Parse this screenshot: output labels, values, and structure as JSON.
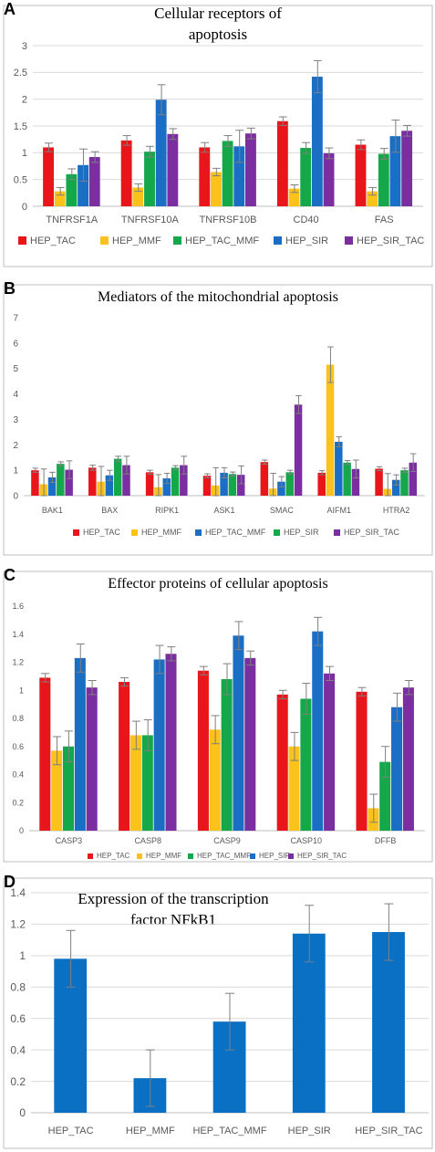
{
  "chart_data": [
    {
      "panel": "A",
      "type": "bar",
      "title_lines": [
        "Cellular  receptors of",
        "apoptosis"
      ],
      "categories": [
        "TNFRSF1A",
        "TNFRSF10A",
        "TNFRSF10B",
        "CD40",
        "FAS"
      ],
      "ylim": [
        0,
        3
      ],
      "yticks": [
        0,
        0.5,
        1,
        1.5,
        2,
        2.5,
        3
      ],
      "ytick_labels": [
        "0",
        "0.5",
        "1",
        "1.5",
        "2",
        "2.5",
        "3"
      ],
      "grid": true,
      "legend_position": "bottom",
      "series": [
        {
          "name": "HEP_TAC",
          "color": "#e8151b",
          "values": [
            1.1,
            1.23,
            1.1,
            1.59,
            1.15
          ],
          "errors": [
            0.08,
            0.09,
            0.09,
            0.08,
            0.09
          ]
        },
        {
          "name": "HEP_MMF",
          "color": "#fbc21b",
          "values": [
            0.28,
            0.35,
            0.64,
            0.33,
            0.28
          ],
          "errors": [
            0.07,
            0.07,
            0.07,
            0.07,
            0.07
          ]
        },
        {
          "name": "HEP_TAC_MMF",
          "color": "#14a84a",
          "values": [
            0.6,
            1.02,
            1.22,
            1.09,
            0.98
          ],
          "errors": [
            0.1,
            0.1,
            0.1,
            0.1,
            0.1
          ]
        },
        {
          "name": "HEP_SIR",
          "color": "#1a6fc5",
          "values": [
            0.77,
            1.99,
            1.12,
            2.42,
            1.31
          ],
          "errors": [
            0.3,
            0.28,
            0.3,
            0.3,
            0.3
          ]
        },
        {
          "name": "HEP_SIR_TAC",
          "color": "#7a2e9f",
          "values": [
            0.92,
            1.35,
            1.36,
            0.99,
            1.41
          ],
          "errors": [
            0.1,
            0.1,
            0.1,
            0.1,
            0.1
          ]
        }
      ]
    },
    {
      "panel": "B",
      "type": "bar",
      "title_lines": [
        "Mediators of the mitochondrial  apoptosis"
      ],
      "categories": [
        "BAK1",
        "BAX",
        "RIPK1",
        "ASK1",
        "SMAC",
        "AIFM1",
        "HTRA2"
      ],
      "ylim": [
        0,
        7
      ],
      "yticks": [
        0,
        1,
        2,
        3,
        4,
        5,
        6,
        7
      ],
      "ytick_labels": [
        "0",
        "1",
        "2",
        "3",
        "4",
        "5",
        "6",
        "7"
      ],
      "grid": false,
      "legend_position": "bottom",
      "series": [
        {
          "name": "HEP_TAC",
          "color": "#e8151b",
          "values": [
            1.0,
            1.1,
            0.92,
            0.78,
            1.32,
            0.9,
            1.06
          ],
          "errors": [
            0.08,
            0.1,
            0.08,
            0.08,
            0.08,
            0.08,
            0.08
          ]
        },
        {
          "name": "HEP_MMF",
          "color": "#fbc21b",
          "values": [
            0.45,
            0.55,
            0.33,
            0.4,
            0.28,
            5.15,
            0.27
          ],
          "errors": [
            0.6,
            0.6,
            0.5,
            0.7,
            0.6,
            0.7,
            0.6
          ]
        },
        {
          "name": "HEP_TAC_MMF",
          "color": "#1a6fc5",
          "values": [
            0.72,
            0.8,
            0.68,
            0.9,
            0.55,
            2.12,
            0.62
          ],
          "errors": [
            0.2,
            0.2,
            0.2,
            0.2,
            0.2,
            0.2,
            0.2
          ]
        },
        {
          "name": "HEP_SIR",
          "color": "#14a84a",
          "values": [
            1.25,
            1.45,
            1.1,
            0.85,
            0.92,
            1.3,
            1.0
          ],
          "errors": [
            0.08,
            0.1,
            0.08,
            0.08,
            0.08,
            0.08,
            0.08
          ]
        },
        {
          "name": "HEP_SIR_TAC",
          "color": "#7a2e9f",
          "values": [
            1.02,
            1.2,
            1.2,
            0.82,
            3.58,
            1.05,
            1.3
          ],
          "errors": [
            0.35,
            0.35,
            0.35,
            0.35,
            0.35,
            0.35,
            0.35
          ]
        }
      ]
    },
    {
      "panel": "C",
      "type": "bar",
      "title_lines": [
        "Effector proteins of cellular  apoptosis"
      ],
      "categories": [
        "CASP3",
        "CASP8",
        "CASP9",
        "CASP10",
        "DFFB"
      ],
      "ylim": [
        0,
        1.6
      ],
      "yticks": [
        0,
        0.2,
        0.4,
        0.6,
        0.8,
        1,
        1.2,
        1.4,
        1.6
      ],
      "ytick_labels": [
        "0",
        "0.2",
        "0.4",
        "0.6",
        "0.8",
        "1",
        "1.2",
        "1.4",
        "1.6"
      ],
      "grid": false,
      "legend_position": "bottom",
      "series": [
        {
          "name": "HEP_TAC",
          "color": "#e8151b",
          "values": [
            1.09,
            1.06,
            1.14,
            0.97,
            0.99
          ],
          "errors": [
            0.03,
            0.03,
            0.03,
            0.03,
            0.03
          ]
        },
        {
          "name": "HEP_MMF",
          "color": "#fbc21b",
          "values": [
            0.57,
            0.68,
            0.72,
            0.6,
            0.16
          ],
          "errors": [
            0.1,
            0.1,
            0.1,
            0.1,
            0.1
          ]
        },
        {
          "name": "HEP_TAC_MMF",
          "color": "#14a84a",
          "values": [
            0.6,
            0.68,
            1.08,
            0.94,
            0.49
          ],
          "errors": [
            0.11,
            0.11,
            0.11,
            0.11,
            0.11
          ]
        },
        {
          "name": "HEP_SIR",
          "color": "#1a6fc5",
          "values": [
            1.23,
            1.22,
            1.39,
            1.42,
            0.88
          ],
          "errors": [
            0.1,
            0.1,
            0.1,
            0.1,
            0.1
          ]
        },
        {
          "name": "HEP_SIR_TAC",
          "color": "#7a2e9f",
          "values": [
            1.02,
            1.26,
            1.23,
            1.12,
            1.02
          ],
          "errors": [
            0.05,
            0.05,
            0.05,
            0.05,
            0.05
          ]
        }
      ]
    },
    {
      "panel": "D",
      "type": "bar",
      "title_lines": [
        "Expression of the transcription",
        "factor NFkB1"
      ],
      "categories": [
        "HEP_TAC",
        "HEP_MMF",
        "HEP_TAC_MMF",
        "HEP_SIR",
        "HEP_SIR_TAC"
      ],
      "ylim": [
        0,
        1.4
      ],
      "yticks": [
        0,
        0.2,
        0.4,
        0.6,
        0.8,
        1,
        1.2,
        1.4
      ],
      "ytick_labels": [
        "0",
        "0.2",
        "0.4",
        "0.6",
        "0.8",
        "1",
        "1.2",
        "1.4"
      ],
      "grid": true,
      "legend_position": "none",
      "series": [
        {
          "name": "",
          "color": "#0a70c4",
          "values": [
            0.98,
            0.22,
            0.58,
            1.14,
            1.15
          ],
          "errors": [
            0.18,
            0.18,
            0.18,
            0.18,
            0.18
          ]
        }
      ]
    }
  ]
}
